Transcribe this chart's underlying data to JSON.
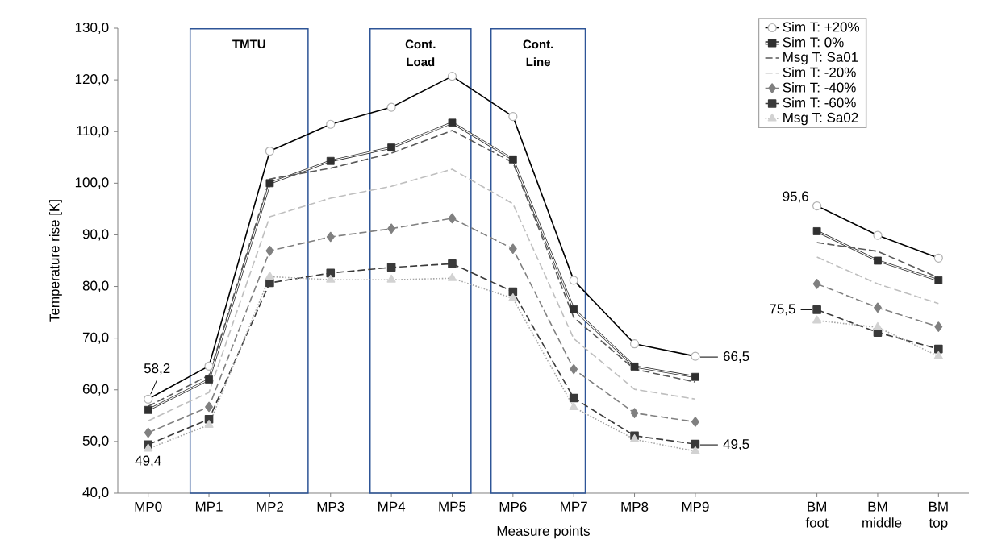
{
  "chart_data": {
    "type": "line",
    "xlabel": "Measure points",
    "ylabel": "Temperature rise [K]",
    "categories": [
      "MP0",
      "MP1",
      "MP2",
      "MP3",
      "MP4",
      "MP5",
      "MP6",
      "MP7",
      "MP8",
      "MP9",
      null,
      "BM foot",
      "BM middle",
      "BM top"
    ],
    "ylim": [
      40,
      130
    ],
    "yticks": [
      {
        "value": 40,
        "label": "40,0"
      },
      {
        "value": 50,
        "label": "50,0"
      },
      {
        "value": 60,
        "label": "60,0"
      },
      {
        "value": 70,
        "label": "70,0"
      },
      {
        "value": 80,
        "label": "80,0"
      },
      {
        "value": 90,
        "label": "90,0"
      },
      {
        "value": 100,
        "label": "100,0"
      },
      {
        "value": 110,
        "label": "110,0"
      },
      {
        "value": 120,
        "label": "120,0"
      },
      {
        "value": 130,
        "label": "130,0"
      }
    ],
    "legend": "top right",
    "grid": false,
    "annotations": [
      "TMTU",
      "Cont. Load",
      "Cont. Line"
    ],
    "series": [
      {
        "name": "Sim T: +20%",
        "color": "#000000",
        "marker": "circle",
        "line_style": "solid",
        "values": [
          58.2,
          64.6,
          106.2,
          111.4,
          114.7,
          120.7,
          112.9,
          81.2,
          68.9,
          66.5,
          null,
          95.6,
          89.9,
          85.5
        ],
        "value_labels": [
          "58,2",
          null,
          null,
          null,
          null,
          null,
          null,
          null,
          null,
          "66,5",
          null,
          "95,6",
          null,
          null
        ]
      },
      {
        "name": "Sim T: 0%",
        "color": "#303030",
        "marker": "square",
        "line_style": "solid",
        "values": [
          56.1,
          62.0,
          100.0,
          104.3,
          106.9,
          111.7,
          104.6,
          75.6,
          64.5,
          62.5,
          null,
          90.7,
          85.0,
          81.2
        ]
      },
      {
        "name": "Msg T: Sa01",
        "color": "#595959",
        "marker": "none",
        "line_style": "dashed",
        "values": [
          56.8,
          62.8,
          100.8,
          102.9,
          105.8,
          110.2,
          104.0,
          74.0,
          64.0,
          61.5,
          null,
          88.5,
          86.8,
          81.7
        ]
      },
      {
        "name": "Sim T: -20%",
        "color": "#bfbfbf",
        "marker": "none",
        "line_style": "dashed",
        "values": [
          54.0,
          59.5,
          93.5,
          97.1,
          99.4,
          102.7,
          96.0,
          69.9,
          60.1,
          58.2,
          null,
          85.7,
          80.5,
          76.7
        ]
      },
      {
        "name": "Sim T: -40%",
        "color": "#808080",
        "marker": "diamond",
        "line_style": "dashed",
        "values": [
          51.7,
          56.7,
          86.9,
          89.6,
          91.2,
          93.2,
          87.3,
          64.0,
          55.5,
          53.8,
          null,
          80.5,
          75.9,
          72.2
        ]
      },
      {
        "name": "Sim T: -60%",
        "color": "#3a3a3a",
        "marker": "square",
        "line_style": "dashed",
        "values": [
          49.4,
          54.3,
          80.7,
          82.6,
          83.7,
          84.4,
          79.0,
          58.4,
          51.1,
          49.5,
          null,
          75.5,
          71.1,
          67.9
        ],
        "value_labels": [
          "49,4",
          null,
          null,
          null,
          null,
          null,
          null,
          null,
          null,
          "49,5",
          null,
          "75,5",
          null,
          null
        ]
      },
      {
        "name": "Msg T: Sa02",
        "color": "#a6a6a6",
        "marker": "triangle",
        "line_style": "dotted",
        "values": [
          48.6,
          53.2,
          81.9,
          81.3,
          81.3,
          81.6,
          77.7,
          56.6,
          50.4,
          48.1,
          null,
          73.4,
          72.1,
          66.5
        ]
      }
    ]
  }
}
